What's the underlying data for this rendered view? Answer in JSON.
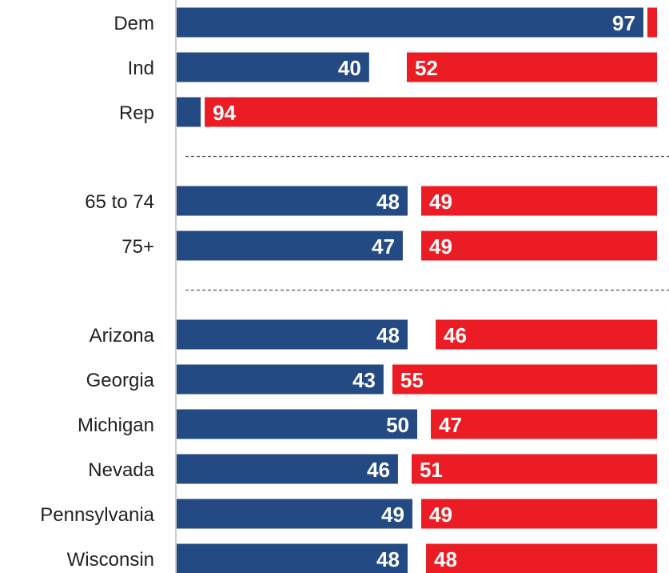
{
  "colors": {
    "dem": "#234a82",
    "rep": "#ec1c24",
    "axis": "#cccccc",
    "separator": "#555555",
    "label": "#222222"
  },
  "chart_data": {
    "type": "bar",
    "orientation": "horizontal",
    "stacked": false,
    "title": "",
    "xlabel": "",
    "ylabel": "",
    "xlim": [
      0,
      100
    ],
    "grid": false,
    "legend": "none",
    "groups": [
      {
        "categories": [
          "Dem",
          "Ind",
          "Rep"
        ],
        "dem": [
          97,
          40,
          5
        ],
        "rep": [
          2,
          52,
          94
        ],
        "dem_labels": [
          "97",
          "40",
          ""
        ],
        "rep_labels": [
          "",
          "52",
          "94"
        ]
      },
      {
        "categories": [
          "65 to 74",
          "75+"
        ],
        "dem": [
          48,
          47
        ],
        "rep": [
          49,
          49
        ],
        "dem_labels": [
          "48",
          "47"
        ],
        "rep_labels": [
          "49",
          "49"
        ]
      },
      {
        "categories": [
          "Arizona",
          "Georgia",
          "Michigan",
          "Nevada",
          "Pennsylvania",
          "Wisconsin"
        ],
        "dem": [
          48,
          43,
          50,
          46,
          49,
          48
        ],
        "rep": [
          46,
          55,
          47,
          51,
          49,
          48
        ],
        "dem_labels": [
          "48",
          "43",
          "50",
          "46",
          "49",
          "48"
        ],
        "rep_labels": [
          "46",
          "55",
          "47",
          "51",
          "49",
          "48"
        ]
      }
    ]
  }
}
